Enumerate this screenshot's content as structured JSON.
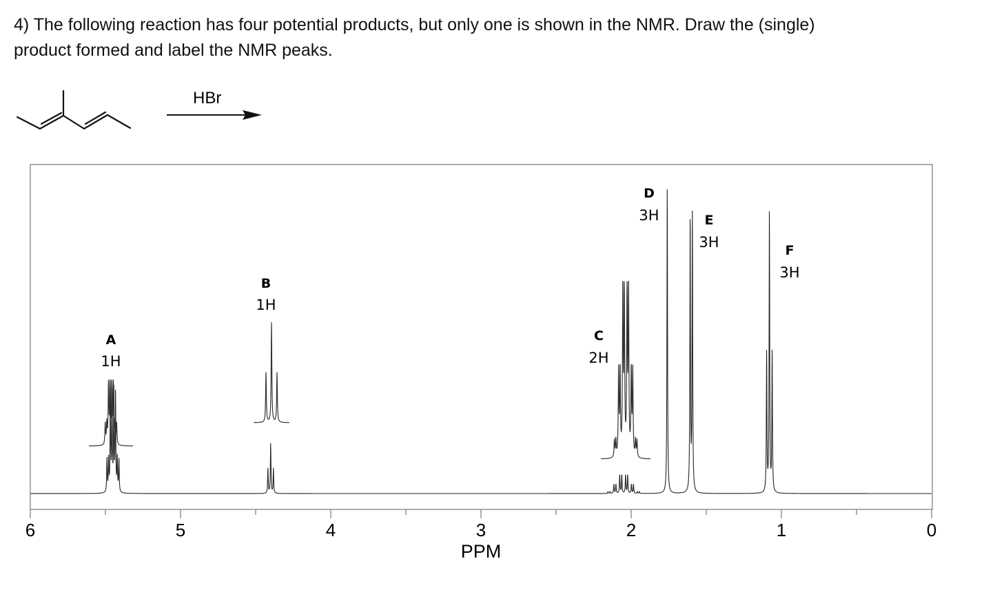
{
  "question": {
    "line1": "4) The following reaction has four potential products, but only one is shown in the NMR. Draw the (single)",
    "line2": "product formed and label the NMR peaks."
  },
  "reaction": {
    "reagent": "HBr"
  },
  "chart_data": {
    "type": "line",
    "xlabel": "PPM",
    "xlim": [
      6,
      0
    ],
    "x_reversed": true,
    "x_tick_labels": [
      "6",
      "5",
      "4",
      "3",
      "2",
      "1",
      "0"
    ],
    "grid": false,
    "peaks": [
      {
        "letter": "A",
        "integration": "1H",
        "ppm": 5.45,
        "multiplet": "quartet of doublets",
        "rel_height": 0.32,
        "inset": true
      },
      {
        "letter": "B",
        "integration": "1H",
        "ppm": 4.4,
        "multiplet": "triplet",
        "rel_height": 0.16,
        "inset": true
      },
      {
        "letter": "C",
        "integration": "2H",
        "ppm": 2.05,
        "multiplet": "multiplet",
        "rel_height": 0.06,
        "inset": true
      },
      {
        "letter": "D",
        "integration": "3H",
        "ppm": 1.76,
        "multiplet": "singlet",
        "rel_height": 0.99,
        "inset": false
      },
      {
        "letter": "E",
        "integration": "3H",
        "ppm": 1.6,
        "multiplet": "doublet",
        "rel_height": 0.89,
        "inset": false
      },
      {
        "letter": "F",
        "integration": "3H",
        "ppm": 1.08,
        "multiplet": "triplet",
        "rel_height": 0.9,
        "inset": false
      }
    ]
  }
}
